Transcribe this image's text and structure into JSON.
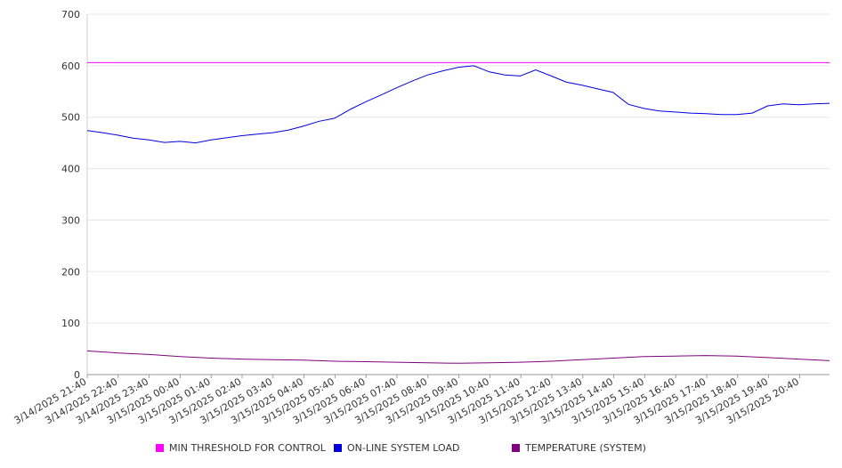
{
  "chart_data": {
    "type": "line",
    "title": "",
    "xlabel": "",
    "ylabel": "",
    "ylim": [
      0,
      700
    ],
    "y_ticks": [
      0,
      100,
      200,
      300,
      400,
      500,
      600,
      700
    ],
    "x_range": [
      "2025-03-14 21:40",
      "2025-03-15 21:40"
    ],
    "x_tick_labels": [
      "3/14/2025 21:40",
      "3/14/2025 22:40",
      "3/14/2025 23:40",
      "3/15/2025 00:40",
      "3/15/2025 01:40",
      "3/15/2025 02:40",
      "3/15/2025 03:40",
      "3/15/2025 04:40",
      "3/15/2025 05:40",
      "3/15/2025 06:40",
      "3/15/2025 07:40",
      "3/15/2025 08:40",
      "3/15/2025 09:40",
      "3/15/2025 10:40",
      "3/15/2025 11:40",
      "3/15/2025 12:40",
      "3/15/2025 13:40",
      "3/15/2025 14:40",
      "3/15/2025 15:40",
      "3/15/2025 16:40",
      "3/15/2025 17:40",
      "3/15/2025 18:40",
      "3/15/2025 19:40",
      "3/15/2025 20:40"
    ],
    "grid": true,
    "legend_position": "bottom",
    "series": [
      {
        "name": "MIN THRESHOLD FOR CONTROL",
        "color": "#ff00ff",
        "points": [
          [
            "2025-03-14 21:40",
            606
          ],
          [
            "2025-03-15 21:40",
            606
          ]
        ]
      },
      {
        "name": "ON-LINE SYSTEM LOAD",
        "color": "#0000dd",
        "points": [
          [
            "2025-03-14 21:40",
            474
          ],
          [
            "2025-03-14 22:10",
            470
          ],
          [
            "2025-03-14 22:40",
            465
          ],
          [
            "2025-03-14 23:10",
            459
          ],
          [
            "2025-03-14 23:40",
            456
          ],
          [
            "2025-03-15 00:10",
            451
          ],
          [
            "2025-03-15 00:40",
            453
          ],
          [
            "2025-03-15 01:10",
            450
          ],
          [
            "2025-03-15 01:40",
            456
          ],
          [
            "2025-03-15 02:10",
            460
          ],
          [
            "2025-03-15 02:40",
            464
          ],
          [
            "2025-03-15 03:10",
            467
          ],
          [
            "2025-03-15 03:40",
            470
          ],
          [
            "2025-03-15 04:10",
            475
          ],
          [
            "2025-03-15 04:40",
            483
          ],
          [
            "2025-03-15 05:10",
            492
          ],
          [
            "2025-03-15 05:40",
            498
          ],
          [
            "2025-03-15 06:10",
            515
          ],
          [
            "2025-03-15 06:40",
            530
          ],
          [
            "2025-03-15 07:10",
            543
          ],
          [
            "2025-03-15 07:40",
            557
          ],
          [
            "2025-03-15 08:10",
            570
          ],
          [
            "2025-03-15 08:40",
            582
          ],
          [
            "2025-03-15 09:10",
            590
          ],
          [
            "2025-03-15 09:40",
            597
          ],
          [
            "2025-03-15 10:10",
            600
          ],
          [
            "2025-03-15 10:40",
            588
          ],
          [
            "2025-03-15 11:10",
            582
          ],
          [
            "2025-03-15 11:40",
            580
          ],
          [
            "2025-03-15 12:10",
            592
          ],
          [
            "2025-03-15 12:40",
            580
          ],
          [
            "2025-03-15 13:10",
            568
          ],
          [
            "2025-03-15 13:40",
            562
          ],
          [
            "2025-03-15 14:10",
            555
          ],
          [
            "2025-03-15 14:40",
            548
          ],
          [
            "2025-03-15 15:10",
            525
          ],
          [
            "2025-03-15 15:40",
            517
          ],
          [
            "2025-03-15 16:10",
            512
          ],
          [
            "2025-03-15 16:40",
            510
          ],
          [
            "2025-03-15 17:10",
            508
          ],
          [
            "2025-03-15 17:40",
            507
          ],
          [
            "2025-03-15 18:10",
            505
          ],
          [
            "2025-03-15 18:40",
            505
          ],
          [
            "2025-03-15 19:10",
            508
          ],
          [
            "2025-03-15 19:40",
            522
          ],
          [
            "2025-03-15 20:10",
            526
          ],
          [
            "2025-03-15 20:40",
            524
          ],
          [
            "2025-03-15 21:10",
            526
          ],
          [
            "2025-03-15 21:40",
            527
          ]
        ]
      },
      {
        "name": "TEMPERATURE (SYSTEM)",
        "color": "#800080",
        "points": [
          [
            "2025-03-14 21:40",
            46
          ],
          [
            "2025-03-14 22:40",
            42
          ],
          [
            "2025-03-14 23:40",
            39
          ],
          [
            "2025-03-15 00:40",
            35
          ],
          [
            "2025-03-15 01:40",
            32
          ],
          [
            "2025-03-15 02:40",
            30
          ],
          [
            "2025-03-15 03:40",
            29
          ],
          [
            "2025-03-15 04:40",
            28
          ],
          [
            "2025-03-15 05:40",
            26
          ],
          [
            "2025-03-15 06:40",
            25
          ],
          [
            "2025-03-15 07:40",
            24
          ],
          [
            "2025-03-15 08:40",
            23
          ],
          [
            "2025-03-15 09:40",
            22
          ],
          [
            "2025-03-15 10:40",
            23
          ],
          [
            "2025-03-15 11:40",
            24
          ],
          [
            "2025-03-15 12:40",
            26
          ],
          [
            "2025-03-15 13:40",
            29
          ],
          [
            "2025-03-15 14:40",
            32
          ],
          [
            "2025-03-15 15:40",
            35
          ],
          [
            "2025-03-15 16:40",
            36
          ],
          [
            "2025-03-15 17:40",
            37
          ],
          [
            "2025-03-15 18:40",
            36
          ],
          [
            "2025-03-15 19:40",
            33
          ],
          [
            "2025-03-15 20:40",
            30
          ],
          [
            "2025-03-15 21:40",
            27
          ]
        ]
      }
    ]
  }
}
